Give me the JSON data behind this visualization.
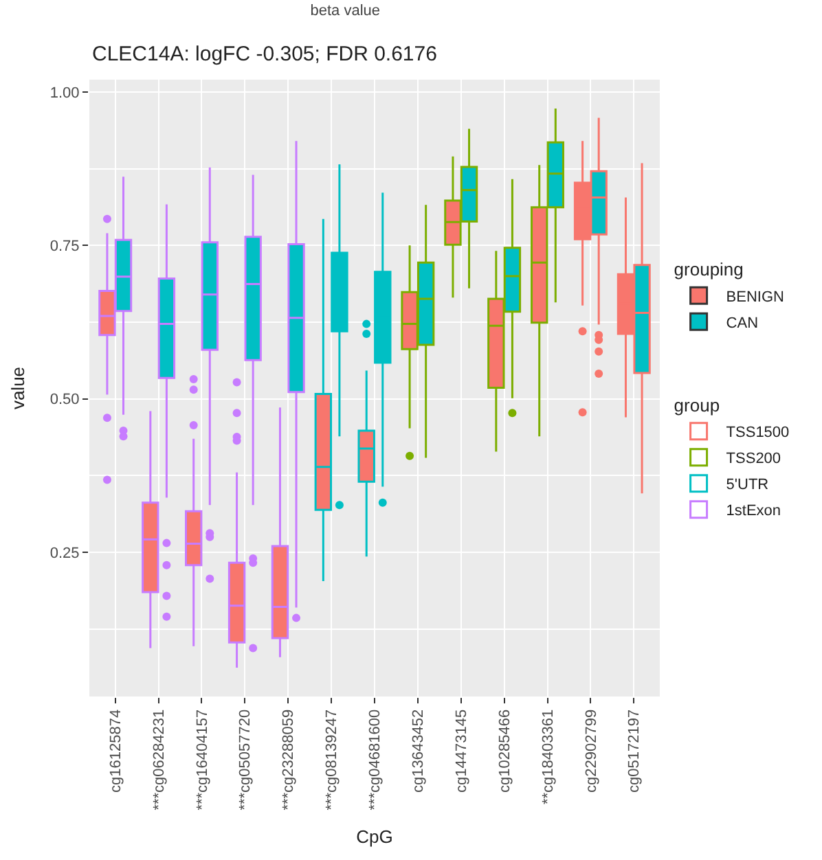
{
  "chart_data": {
    "type": "box",
    "title": "beta value",
    "subtitle": "CLEC14A: logFC -0.305; FDR 0.6176",
    "xlabel": "CpG",
    "ylabel": "value",
    "legend_title": [
      "grouping",
      "group"
    ],
    "categories": [
      "cg16125874",
      "***cg06284231",
      "***cg16404157",
      "***cg05057720",
      "***cg23288059",
      "***cg08139247",
      "***cg04681600",
      "cg13643452",
      "cg14473145",
      "cg10285466",
      "**cg18403361",
      "cg22902799",
      "cg05172197"
    ],
    "ylim": [
      0.015,
      1.02
    ],
    "yticks": [
      0.25,
      {
        "value": 0.5,
        "label": "0.50"
      },
      0.75,
      {
        "value": 1.0,
        "label": "1.00"
      }
    ],
    "grid": true,
    "legend": "right",
    "series": [
      {
        "name": "BENIGN",
        "color": "#f8766d",
        "colors": [
          "#c77cff",
          "#c77cff",
          "#c77cff",
          "#c77cff",
          "#c77cff",
          "#00bfc4",
          "#00bfc4",
          "#7cae00",
          "#7cae00",
          "#7cae00",
          "#7cae00",
          "#f8766d",
          "#f8766d"
        ],
        "boxes": [
          {
            "low": 0.507,
            "q1": 0.604,
            "median": 0.635,
            "q3": 0.676,
            "high": 0.77,
            "outliers": [
              0.793,
              0.469,
              0.368
            ]
          },
          {
            "low": 0.094,
            "q1": 0.185,
            "median": 0.271,
            "q3": 0.331,
            "high": 0.48
          },
          {
            "low": 0.097,
            "q1": 0.229,
            "median": 0.264,
            "q3": 0.317,
            "high": 0.435,
            "outliers": [
              0.532,
              0.515,
              0.457
            ]
          },
          {
            "low": 0.062,
            "q1": 0.103,
            "median": 0.163,
            "q3": 0.233,
            "high": 0.38,
            "outliers": [
              0.527,
              0.477,
              0.438,
              0.432
            ]
          },
          {
            "low": 0.079,
            "q1": 0.11,
            "median": 0.161,
            "q3": 0.26,
            "high": 0.486
          },
          {
            "low": 0.203,
            "q1": 0.319,
            "median": 0.389,
            "q3": 0.508,
            "high": 0.793
          },
          {
            "low": 0.243,
            "q1": 0.365,
            "median": 0.419,
            "q3": 0.448,
            "high": 0.546,
            "outliers": [
              0.622,
              0.606
            ]
          },
          {
            "low": 0.452,
            "q1": 0.581,
            "median": 0.622,
            "q3": 0.674,
            "high": 0.75,
            "outliers": [
              0.407
            ]
          },
          {
            "low": 0.665,
            "q1": 0.751,
            "median": 0.788,
            "q3": 0.823,
            "high": 0.895
          },
          {
            "low": 0.414,
            "q1": 0.518,
            "median": 0.619,
            "q3": 0.663,
            "high": 0.741
          },
          {
            "low": 0.439,
            "q1": 0.624,
            "median": 0.722,
            "q3": 0.812,
            "high": 0.881
          },
          {
            "low": 0.652,
            "q1": 0.76,
            "median": 0.81,
            "q3": 0.852,
            "high": 0.92,
            "outliers": [
              0.61,
              0.478
            ]
          },
          {
            "low": 0.47,
            "q1": 0.606,
            "median": 0.655,
            "q3": 0.703,
            "high": 0.828
          }
        ]
      },
      {
        "name": "CAN",
        "color": "#00bfc4",
        "colors": [
          "#c77cff",
          "#c77cff",
          "#c77cff",
          "#c77cff",
          "#c77cff",
          "#00bfc4",
          "#00bfc4",
          "#7cae00",
          "#7cae00",
          "#7cae00",
          "#7cae00",
          "#f8766d",
          "#f8766d"
        ],
        "boxes": [
          {
            "low": 0.474,
            "q1": 0.643,
            "median": 0.699,
            "q3": 0.759,
            "high": 0.862,
            "outliers": [
              0.448,
              0.439
            ]
          },
          {
            "low": 0.339,
            "q1": 0.534,
            "median": 0.622,
            "q3": 0.696,
            "high": 0.817,
            "outliers": [
              0.265,
              0.229,
              0.179,
              0.145
            ]
          },
          {
            "low": 0.327,
            "q1": 0.58,
            "median": 0.67,
            "q3": 0.755,
            "high": 0.877,
            "outliers": [
              0.281,
              0.275,
              0.207
            ]
          },
          {
            "low": 0.327,
            "q1": 0.563,
            "median": 0.687,
            "q3": 0.764,
            "high": 0.865,
            "outliers": [
              0.24,
              0.233,
              0.094
            ]
          },
          {
            "low": 0.16,
            "q1": 0.511,
            "median": 0.632,
            "q3": 0.752,
            "high": 0.92,
            "outliers": [
              0.143
            ]
          },
          {
            "low": 0.439,
            "q1": 0.61,
            "median": 0.674,
            "q3": 0.738,
            "high": 0.882,
            "outliers": [
              0.327
            ]
          },
          {
            "low": 0.357,
            "q1": 0.559,
            "median": 0.633,
            "q3": 0.707,
            "high": 0.836,
            "outliers": [
              0.331
            ]
          },
          {
            "low": 0.404,
            "q1": 0.588,
            "median": 0.663,
            "q3": 0.722,
            "high": 0.816
          },
          {
            "low": 0.68,
            "q1": 0.789,
            "median": 0.84,
            "q3": 0.878,
            "high": 0.94
          },
          {
            "low": 0.501,
            "q1": 0.642,
            "median": 0.7,
            "q3": 0.746,
            "high": 0.858,
            "outliers": [
              0.477
            ]
          },
          {
            "low": 0.657,
            "q1": 0.812,
            "median": 0.867,
            "q3": 0.918,
            "high": 0.973
          },
          {
            "low": 0.621,
            "q1": 0.768,
            "median": 0.828,
            "q3": 0.871,
            "high": 0.958,
            "outliers": [
              0.604,
              0.596,
              0.577,
              0.541
            ]
          },
          {
            "low": 0.346,
            "q1": 0.542,
            "median": 0.64,
            "q3": 0.718,
            "high": 0.884
          }
        ]
      },
      {
        "name": "TSS1500",
        "color": "#f8766d",
        "boxes": [
          null,
          null,
          null,
          null,
          null,
          null,
          null,
          null,
          null,
          null,
          null,
          null,
          null
        ]
      },
      {
        "name": "TSS200",
        "color": "#7cae00",
        "boxes": [
          null,
          null,
          null,
          null,
          null,
          null,
          null,
          null,
          null,
          null,
          null,
          null,
          null
        ]
      },
      {
        "name": "5'UTR",
        "color": "#00bfc4",
        "boxes": [
          null,
          null,
          null,
          null,
          null,
          null,
          null,
          null,
          null,
          null,
          null,
          null,
          null
        ]
      },
      {
        "name": "1stExon",
        "color": "#c77cff",
        "boxes": [
          null,
          null,
          null,
          null,
          null,
          null,
          null,
          null,
          null,
          null,
          null,
          null,
          null
        ]
      }
    ]
  }
}
